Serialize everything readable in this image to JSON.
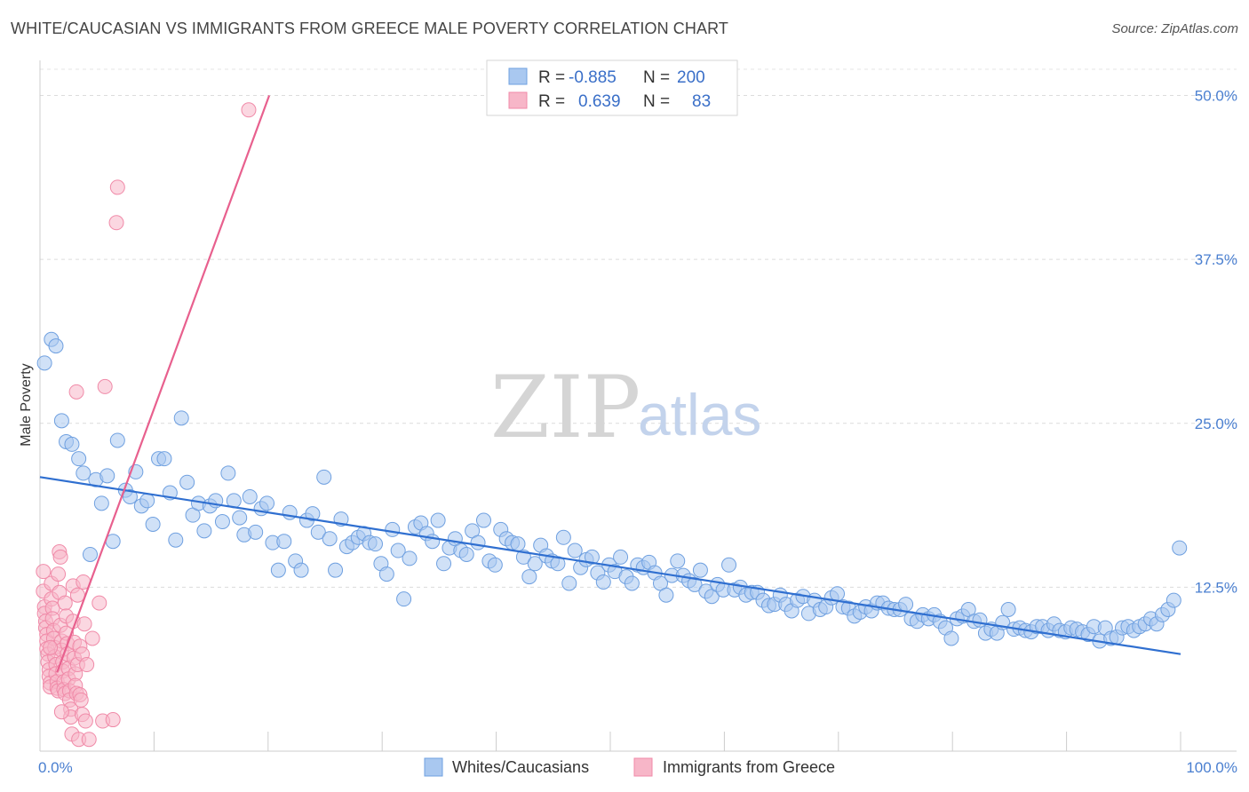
{
  "title": "WHITE/CAUCASIAN VS IMMIGRANTS FROM GREECE MALE POVERTY CORRELATION CHART",
  "source": "Source: ZipAtlas.com",
  "watermark": {
    "zip": "ZIP",
    "atlas": "atlas"
  },
  "legend_top": {
    "rows": [
      {
        "r_label": "R =",
        "r_value": "-0.885",
        "n_label": "N =",
        "n_value": "200",
        "color": "#a9c8f0"
      },
      {
        "r_label": "R =",
        "r_value": "0.639",
        "n_label": "N =",
        "n_value": "83",
        "color": "#f7b6c8"
      }
    ]
  },
  "legend_bottom": [
    {
      "label": "Whites/Caucasians",
      "color": "#a9c8f0"
    },
    {
      "label": "Immigrants from Greece",
      "color": "#f7b6c8"
    }
  ],
  "chart_data": {
    "type": "scatter",
    "title": "WHITE/CAUCASIAN VS IMMIGRANTS FROM GREECE MALE POVERTY CORRELATION CHART",
    "xlabel": "",
    "ylabel": "Male Poverty",
    "xlim": [
      0,
      100
    ],
    "ylim": [
      0,
      52
    ],
    "x_tick_labels": [
      "0.0%",
      "100.0%"
    ],
    "y_ticks": [
      12.5,
      25.0,
      37.5,
      50.0
    ],
    "y_tick_labels": [
      "12.5%",
      "25.0%",
      "37.5%",
      "50.0%"
    ],
    "grid": "horizontal dashed",
    "series": [
      {
        "name": "Whites/Caucasians",
        "color": "#6fa0e0",
        "fill": "#a9c8f0",
        "trend": {
          "x": [
            0,
            100
          ],
          "y": [
            20.9,
            7.4
          ],
          "color": "#2f6fd0"
        },
        "points": [
          [
            0.4,
            29.6
          ],
          [
            1.0,
            31.4
          ],
          [
            1.4,
            30.9
          ],
          [
            1.9,
            25.2
          ],
          [
            2.3,
            23.6
          ],
          [
            2.8,
            23.4
          ],
          [
            3.4,
            22.3
          ],
          [
            3.8,
            21.2
          ],
          [
            4.4,
            15.0
          ],
          [
            4.9,
            20.7
          ],
          [
            5.4,
            18.9
          ],
          [
            5.9,
            21.0
          ],
          [
            6.4,
            16.0
          ],
          [
            6.8,
            23.7
          ],
          [
            7.5,
            19.9
          ],
          [
            7.9,
            19.4
          ],
          [
            8.4,
            21.3
          ],
          [
            8.9,
            18.7
          ],
          [
            9.4,
            19.1
          ],
          [
            9.9,
            17.3
          ],
          [
            10.4,
            22.3
          ],
          [
            10.9,
            22.3
          ],
          [
            11.4,
            19.7
          ],
          [
            11.9,
            16.1
          ],
          [
            12.4,
            25.4
          ],
          [
            12.9,
            20.5
          ],
          [
            13.4,
            18.0
          ],
          [
            13.9,
            18.9
          ],
          [
            14.4,
            16.8
          ],
          [
            14.9,
            18.7
          ],
          [
            15.4,
            19.1
          ],
          [
            16.0,
            17.5
          ],
          [
            16.5,
            21.2
          ],
          [
            17.0,
            19.1
          ],
          [
            17.5,
            17.8
          ],
          [
            17.9,
            16.5
          ],
          [
            18.4,
            19.4
          ],
          [
            18.9,
            16.7
          ],
          [
            19.4,
            18.5
          ],
          [
            19.9,
            18.9
          ],
          [
            20.4,
            15.9
          ],
          [
            20.9,
            13.8
          ],
          [
            21.4,
            16.0
          ],
          [
            21.9,
            18.2
          ],
          [
            22.4,
            14.5
          ],
          [
            22.9,
            13.8
          ],
          [
            23.4,
            17.6
          ],
          [
            23.9,
            18.1
          ],
          [
            24.4,
            16.7
          ],
          [
            24.9,
            20.9
          ],
          [
            25.4,
            16.2
          ],
          [
            25.9,
            13.8
          ],
          [
            26.4,
            17.7
          ],
          [
            26.9,
            15.6
          ],
          [
            27.4,
            15.9
          ],
          [
            27.9,
            16.3
          ],
          [
            28.4,
            16.6
          ],
          [
            28.9,
            15.9
          ],
          [
            29.4,
            15.8
          ],
          [
            29.9,
            14.3
          ],
          [
            30.4,
            13.5
          ],
          [
            30.9,
            16.9
          ],
          [
            31.4,
            15.3
          ],
          [
            31.9,
            11.6
          ],
          [
            32.4,
            14.7
          ],
          [
            32.9,
            17.1
          ],
          [
            33.4,
            17.4
          ],
          [
            33.9,
            16.6
          ],
          [
            34.4,
            16.0
          ],
          [
            34.9,
            17.6
          ],
          [
            35.4,
            14.3
          ],
          [
            35.9,
            15.5
          ],
          [
            36.4,
            16.2
          ],
          [
            36.9,
            15.3
          ],
          [
            37.4,
            15.0
          ],
          [
            37.9,
            16.8
          ],
          [
            38.4,
            15.9
          ],
          [
            38.9,
            17.6
          ],
          [
            39.4,
            14.5
          ],
          [
            39.9,
            14.2
          ],
          [
            40.4,
            16.9
          ],
          [
            40.9,
            16.2
          ],
          [
            41.4,
            15.9
          ],
          [
            41.9,
            15.8
          ],
          [
            42.4,
            14.8
          ],
          [
            42.9,
            13.3
          ],
          [
            43.4,
            14.3
          ],
          [
            43.9,
            15.7
          ],
          [
            44.4,
            14.9
          ],
          [
            44.9,
            14.5
          ],
          [
            45.4,
            14.3
          ],
          [
            45.9,
            16.3
          ],
          [
            46.4,
            12.8
          ],
          [
            46.9,
            15.3
          ],
          [
            47.4,
            14.0
          ],
          [
            47.9,
            14.6
          ],
          [
            48.4,
            14.8
          ],
          [
            48.9,
            13.6
          ],
          [
            49.4,
            12.9
          ],
          [
            49.9,
            14.2
          ],
          [
            50.4,
            13.7
          ],
          [
            50.9,
            14.8
          ],
          [
            51.4,
            13.3
          ],
          [
            51.9,
            12.8
          ],
          [
            52.4,
            14.2
          ],
          [
            52.9,
            14.0
          ],
          [
            53.4,
            14.4
          ],
          [
            53.9,
            13.6
          ],
          [
            54.4,
            12.8
          ],
          [
            54.9,
            11.9
          ],
          [
            55.4,
            13.4
          ],
          [
            55.9,
            14.5
          ],
          [
            56.4,
            13.4
          ],
          [
            56.9,
            13.0
          ],
          [
            57.4,
            12.7
          ],
          [
            57.9,
            13.8
          ],
          [
            58.4,
            12.2
          ],
          [
            58.9,
            11.8
          ],
          [
            59.4,
            12.7
          ],
          [
            59.9,
            12.3
          ],
          [
            60.4,
            14.2
          ],
          [
            60.9,
            12.3
          ],
          [
            61.4,
            12.5
          ],
          [
            61.9,
            11.9
          ],
          [
            62.4,
            12.1
          ],
          [
            62.9,
            12.1
          ],
          [
            63.4,
            11.5
          ],
          [
            63.9,
            11.1
          ],
          [
            64.4,
            11.2
          ],
          [
            64.9,
            11.9
          ],
          [
            65.4,
            11.2
          ],
          [
            65.9,
            10.7
          ],
          [
            66.4,
            11.5
          ],
          [
            66.9,
            11.8
          ],
          [
            67.4,
            10.5
          ],
          [
            67.9,
            11.5
          ],
          [
            68.4,
            10.8
          ],
          [
            68.9,
            11.0
          ],
          [
            69.4,
            11.7
          ],
          [
            69.9,
            12.0
          ],
          [
            70.4,
            11.0
          ],
          [
            70.9,
            10.9
          ],
          [
            71.4,
            10.3
          ],
          [
            71.9,
            10.6
          ],
          [
            72.4,
            11.0
          ],
          [
            72.9,
            10.7
          ],
          [
            73.4,
            11.3
          ],
          [
            73.9,
            11.3
          ],
          [
            74.4,
            10.9
          ],
          [
            74.9,
            10.8
          ],
          [
            75.4,
            10.8
          ],
          [
            75.9,
            11.2
          ],
          [
            76.4,
            10.1
          ],
          [
            76.9,
            9.9
          ],
          [
            77.4,
            10.4
          ],
          [
            77.9,
            10.1
          ],
          [
            78.4,
            10.4
          ],
          [
            78.9,
            9.9
          ],
          [
            79.4,
            9.4
          ],
          [
            79.9,
            8.6
          ],
          [
            80.4,
            10.1
          ],
          [
            80.9,
            10.3
          ],
          [
            81.4,
            10.8
          ],
          [
            81.9,
            9.9
          ],
          [
            82.4,
            10.0
          ],
          [
            82.9,
            9.0
          ],
          [
            83.4,
            9.3
          ],
          [
            83.9,
            9.0
          ],
          [
            84.4,
            9.8
          ],
          [
            84.9,
            10.8
          ],
          [
            85.4,
            9.3
          ],
          [
            85.9,
            9.4
          ],
          [
            86.4,
            9.2
          ],
          [
            86.9,
            9.1
          ],
          [
            87.4,
            9.5
          ],
          [
            87.9,
            9.5
          ],
          [
            88.4,
            9.2
          ],
          [
            88.9,
            9.7
          ],
          [
            89.4,
            9.2
          ],
          [
            89.9,
            9.1
          ],
          [
            90.4,
            9.4
          ],
          [
            90.9,
            9.3
          ],
          [
            91.4,
            9.1
          ],
          [
            91.9,
            8.9
          ],
          [
            92.4,
            9.5
          ],
          [
            92.9,
            8.4
          ],
          [
            93.4,
            9.4
          ],
          [
            93.9,
            8.6
          ],
          [
            94.4,
            8.7
          ],
          [
            94.9,
            9.4
          ],
          [
            95.4,
            9.5
          ],
          [
            95.9,
            9.2
          ],
          [
            96.4,
            9.5
          ],
          [
            96.9,
            9.7
          ],
          [
            97.4,
            10.1
          ],
          [
            97.9,
            9.7
          ],
          [
            98.4,
            10.4
          ],
          [
            98.9,
            10.8
          ],
          [
            99.4,
            11.5
          ],
          [
            99.9,
            15.5
          ]
        ]
      },
      {
        "name": "Immigrants from Greece",
        "color": "#f08aa8",
        "fill": "#f7b6c8",
        "trend": {
          "x": [
            1.5,
            20.1
          ],
          "y": [
            6.0,
            50.0
          ],
          "color": "#e8608e"
        },
        "points": [
          [
            0.3,
            13.7
          ],
          [
            0.3,
            12.2
          ],
          [
            0.4,
            11.0
          ],
          [
            0.4,
            10.5
          ],
          [
            0.5,
            9.9
          ],
          [
            0.5,
            9.4
          ],
          [
            0.6,
            8.9
          ],
          [
            0.6,
            8.4
          ],
          [
            0.6,
            7.8
          ],
          [
            0.7,
            7.4
          ],
          [
            0.7,
            6.8
          ],
          [
            0.8,
            6.2
          ],
          [
            0.8,
            5.7
          ],
          [
            0.9,
            5.2
          ],
          [
            0.9,
            4.9
          ],
          [
            1.0,
            12.8
          ],
          [
            1.0,
            11.6
          ],
          [
            1.1,
            10.9
          ],
          [
            1.1,
            10.1
          ],
          [
            1.2,
            9.2
          ],
          [
            1.2,
            8.6
          ],
          [
            1.3,
            7.9
          ],
          [
            1.3,
            7.2
          ],
          [
            1.4,
            6.6
          ],
          [
            1.4,
            5.9
          ],
          [
            1.5,
            5.3
          ],
          [
            1.5,
            4.8
          ],
          [
            1.6,
            4.6
          ],
          [
            1.6,
            13.5
          ],
          [
            1.7,
            12.1
          ],
          [
            1.7,
            15.2
          ],
          [
            1.8,
            14.8
          ],
          [
            1.8,
            9.6
          ],
          [
            1.9,
            8.4
          ],
          [
            1.9,
            7.7
          ],
          [
            2.0,
            6.8
          ],
          [
            2.0,
            6.1
          ],
          [
            2.1,
            5.3
          ],
          [
            2.1,
            4.7
          ],
          [
            2.2,
            4.4
          ],
          [
            2.2,
            11.3
          ],
          [
            2.3,
            10.3
          ],
          [
            2.3,
            9.0
          ],
          [
            2.4,
            8.2
          ],
          [
            2.4,
            7.4
          ],
          [
            2.5,
            6.3
          ],
          [
            2.5,
            5.5
          ],
          [
            2.6,
            4.6
          ],
          [
            2.6,
            3.9
          ],
          [
            2.7,
            3.2
          ],
          [
            2.7,
            2.6
          ],
          [
            2.8,
            1.3
          ],
          [
            1.9,
            3.0
          ],
          [
            2.9,
            12.6
          ],
          [
            2.9,
            9.9
          ],
          [
            3.0,
            8.3
          ],
          [
            3.0,
            7.1
          ],
          [
            3.1,
            5.9
          ],
          [
            3.1,
            5.0
          ],
          [
            3.2,
            4.4
          ],
          [
            3.2,
            27.4
          ],
          [
            3.3,
            11.9
          ],
          [
            3.3,
            6.6
          ],
          [
            3.4,
            0.9
          ],
          [
            3.5,
            8.0
          ],
          [
            3.5,
            4.3
          ],
          [
            3.6,
            3.9
          ],
          [
            3.7,
            7.4
          ],
          [
            3.7,
            2.8
          ],
          [
            3.8,
            12.9
          ],
          [
            3.9,
            9.7
          ],
          [
            4.0,
            2.3
          ],
          [
            4.1,
            6.6
          ],
          [
            4.3,
            0.9
          ],
          [
            4.6,
            8.6
          ],
          [
            5.2,
            11.3
          ],
          [
            5.5,
            2.3
          ],
          [
            5.7,
            27.8
          ],
          [
            6.4,
            2.4
          ],
          [
            6.7,
            40.3
          ],
          [
            6.8,
            43.0
          ],
          [
            18.3,
            48.9
          ],
          [
            0.9,
            7.9
          ]
        ]
      }
    ]
  }
}
